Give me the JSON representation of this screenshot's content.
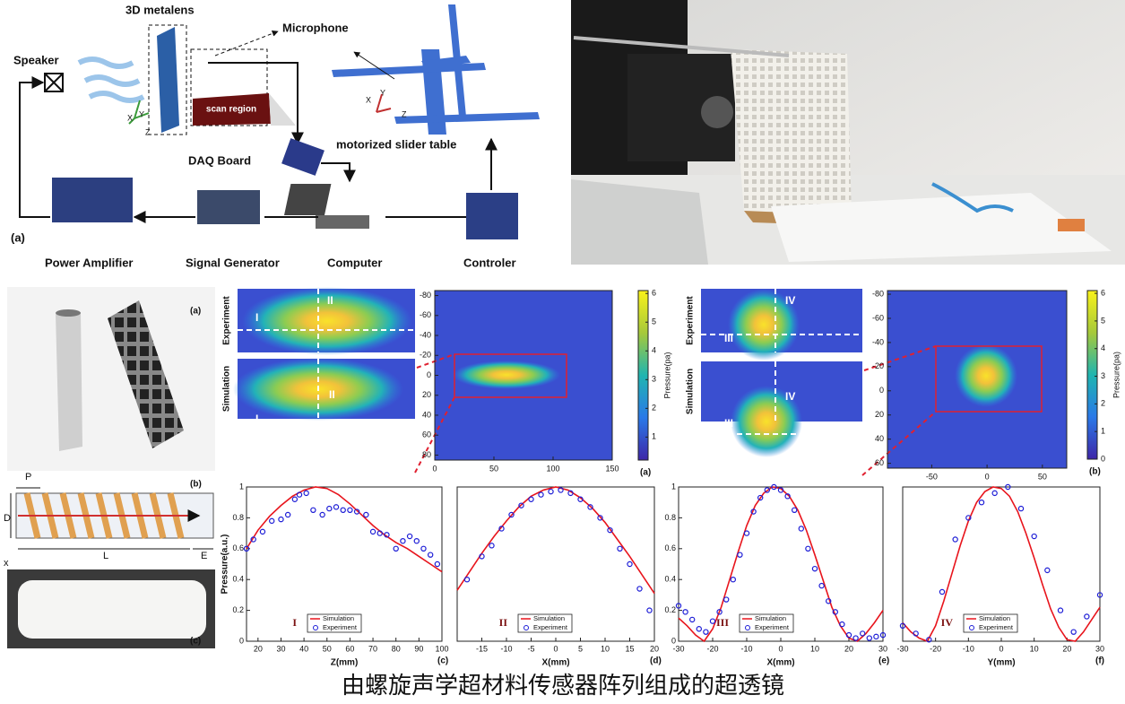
{
  "setup": {
    "panel": "(a)",
    "speaker": "Speaker",
    "metalens": "3D metalens",
    "microphone": "Microphone",
    "scan_region": "scan region",
    "daq": "DAQ Board",
    "slider": "motorized slider table",
    "power_amplifier": "Power Amplifier",
    "signal_generator": "Signal Generator",
    "computer": "Computer",
    "controller": "Controler",
    "axes": [
      "X",
      "Y",
      "Z"
    ]
  },
  "unit_cell": {
    "labels": [
      "(a)",
      "(b)",
      "(c)"
    ],
    "dims": [
      "P",
      "D",
      "L",
      "E",
      "x"
    ]
  },
  "maps": [
    {
      "rows": [
        "Experiment",
        "Simulation"
      ],
      "cuts": [
        "I",
        "II"
      ],
      "xlim": [
        0,
        150
      ],
      "ylim": [
        -85,
        85
      ],
      "xticks": [
        0,
        50,
        100,
        150
      ],
      "yticks": [
        -80,
        -60,
        -40,
        -20,
        0,
        20,
        40,
        60,
        80
      ],
      "clim": [
        0.2,
        6.1
      ],
      "colorbar_ticks": [
        1,
        2,
        3,
        4,
        5,
        6
      ],
      "colorbar_label": "Pressure(pa)",
      "panel": "(a)"
    },
    {
      "rows": [
        "Experiment",
        "Simulation"
      ],
      "cuts": [
        "III",
        "IV"
      ],
      "xlim": [
        -90,
        72
      ],
      "ylim": [
        -83,
        64
      ],
      "xticks": [
        -50,
        0,
        50
      ],
      "yticks": [
        -80,
        -60,
        -40,
        -20,
        0,
        20,
        40,
        60
      ],
      "clim": [
        0,
        6.1
      ],
      "colorbar_ticks": [
        0,
        1,
        2,
        3,
        4,
        5,
        6
      ],
      "colorbar_label": "Pressure(pa)",
      "panel": "(b)"
    }
  ],
  "chart_data": [
    {
      "type": "line",
      "xlabel": "Z(mm)",
      "ylabel": "Pressure(a.u.)",
      "annotation": "I",
      "panel": "(c)",
      "xlim": [
        15,
        100
      ],
      "ylim": [
        0,
        1
      ],
      "xticks": [
        20,
        30,
        40,
        50,
        60,
        70,
        80,
        90,
        100
      ],
      "yticks": [
        0,
        0.2,
        0.4,
        0.6,
        0.8,
        1
      ],
      "series": [
        {
          "name": "Simulation",
          "color": "#e8141c",
          "mode": "line",
          "x": [
            15,
            20,
            25,
            30,
            35,
            40,
            45,
            50,
            55,
            60,
            65,
            70,
            75,
            80,
            85,
            90,
            95,
            100
          ],
          "values": [
            0.6,
            0.72,
            0.81,
            0.88,
            0.94,
            0.98,
            1.0,
            0.99,
            0.95,
            0.89,
            0.82,
            0.75,
            0.69,
            0.64,
            0.6,
            0.55,
            0.5,
            0.45
          ]
        },
        {
          "name": "Experiment",
          "color": "#1c1cd6",
          "mode": "markers",
          "x": [
            15,
            18,
            22,
            26,
            30,
            33,
            36,
            38,
            41,
            44,
            48,
            51,
            54,
            57,
            60,
            63,
            67,
            70,
            73,
            76,
            80,
            83,
            86,
            89,
            92,
            95,
            98
          ],
          "values": [
            0.6,
            0.66,
            0.71,
            0.78,
            0.79,
            0.82,
            0.92,
            0.95,
            0.96,
            0.85,
            0.82,
            0.86,
            0.87,
            0.85,
            0.85,
            0.84,
            0.82,
            0.71,
            0.7,
            0.69,
            0.6,
            0.65,
            0.68,
            0.65,
            0.6,
            0.56,
            0.5
          ]
        }
      ]
    },
    {
      "type": "line",
      "xlabel": "X(mm)",
      "annotation": "II",
      "panel": "(d)",
      "xlim": [
        -20,
        20
      ],
      "ylim": [
        0,
        1
      ],
      "xticks": [
        -15,
        -10,
        -5,
        0,
        5,
        10,
        15,
        20
      ],
      "series": [
        {
          "name": "Simulation",
          "color": "#e8141c",
          "mode": "line",
          "x": [
            -20,
            -17.5,
            -15,
            -12.5,
            -10,
            -7.5,
            -5,
            -2.5,
            0,
            2.5,
            5,
            7.5,
            10,
            12.5,
            15,
            17.5,
            20
          ],
          "values": [
            0.33,
            0.45,
            0.57,
            0.68,
            0.78,
            0.87,
            0.94,
            0.98,
            1.0,
            0.98,
            0.93,
            0.86,
            0.77,
            0.66,
            0.55,
            0.43,
            0.31
          ]
        },
        {
          "name": "Experiment",
          "color": "#1c1cd6",
          "mode": "markers",
          "x": [
            -18,
            -15,
            -13,
            -11,
            -9,
            -7,
            -5,
            -3,
            -1,
            1,
            3,
            5,
            7,
            9,
            11,
            13,
            15,
            17,
            19
          ],
          "values": [
            0.4,
            0.55,
            0.62,
            0.73,
            0.82,
            0.88,
            0.92,
            0.95,
            0.97,
            0.98,
            0.96,
            0.92,
            0.87,
            0.8,
            0.72,
            0.6,
            0.5,
            0.34,
            0.2
          ]
        }
      ]
    },
    {
      "type": "line",
      "xlabel": "X(mm)",
      "annotation": "III",
      "panel": "(e)",
      "xlim": [
        -30,
        30
      ],
      "ylim": [
        0,
        1
      ],
      "xticks": [
        -30,
        -20,
        -10,
        0,
        10,
        20,
        30
      ],
      "yticks": [
        0,
        0.2,
        0.4,
        0.6,
        0.8,
        1
      ],
      "series": [
        {
          "name": "Simulation",
          "color": "#e8141c",
          "mode": "line",
          "x": [
            -30,
            -27.5,
            -25,
            -22.5,
            -20,
            -17.5,
            -15,
            -12.5,
            -10,
            -7.5,
            -5,
            -2.5,
            0,
            2.5,
            5,
            7.5,
            10,
            12.5,
            15,
            17.5,
            20,
            22.5,
            25,
            27.5,
            30
          ],
          "values": [
            0.15,
            0.1,
            0.04,
            0,
            0.08,
            0.22,
            0.4,
            0.58,
            0.75,
            0.88,
            0.96,
            1.0,
            0.99,
            0.94,
            0.85,
            0.72,
            0.56,
            0.39,
            0.22,
            0.1,
            0.02,
            0,
            0.05,
            0.12,
            0.2
          ]
        },
        {
          "name": "Experiment",
          "color": "#1c1cd6",
          "mode": "markers",
          "x": [
            -30,
            -28,
            -26,
            -24,
            -22,
            -20,
            -18,
            -16,
            -14,
            -12,
            -10,
            -8,
            -6,
            -4,
            -2,
            0,
            2,
            4,
            6,
            8,
            10,
            12,
            14,
            16,
            18,
            20,
            22,
            24,
            26,
            28,
            30
          ],
          "values": [
            0.23,
            0.19,
            0.14,
            0.08,
            0.06,
            0.13,
            0.19,
            0.27,
            0.4,
            0.56,
            0.7,
            0.84,
            0.93,
            0.98,
            1.0,
            0.98,
            0.94,
            0.85,
            0.73,
            0.6,
            0.47,
            0.36,
            0.26,
            0.19,
            0.11,
            0.04,
            0.02,
            0.05,
            0.02,
            0.03,
            0.04
          ]
        }
      ]
    },
    {
      "type": "line",
      "xlabel": "Y(mm)",
      "annotation": "IV",
      "panel": "(f)",
      "xlim": [
        -30,
        30
      ],
      "ylim": [
        0,
        1
      ],
      "xticks": [
        -30,
        -20,
        -10,
        0,
        10,
        20,
        30
      ],
      "series": [
        {
          "name": "Simulation",
          "color": "#e8141c",
          "mode": "line",
          "x": [
            -30,
            -27.5,
            -25,
            -22.5,
            -20,
            -17.5,
            -15,
            -12.5,
            -10,
            -7.5,
            -5,
            -2.5,
            0,
            2.5,
            5,
            7.5,
            10,
            12.5,
            15,
            17.5,
            20,
            22.5,
            25,
            27.5,
            30
          ],
          "values": [
            0.12,
            0.06,
            0.02,
            0,
            0.1,
            0.26,
            0.44,
            0.62,
            0.78,
            0.9,
            0.97,
            1.0,
            0.99,
            0.94,
            0.84,
            0.7,
            0.54,
            0.37,
            0.21,
            0.09,
            0.01,
            0,
            0.06,
            0.14,
            0.22
          ]
        },
        {
          "name": "Experiment",
          "color": "#1c1cd6",
          "mode": "markers",
          "x": [
            -30,
            -26,
            -22,
            -18,
            -14,
            -10,
            -6,
            -2,
            2,
            6,
            10,
            14,
            18,
            22,
            26,
            30
          ],
          "values": [
            0.1,
            0.05,
            0.01,
            0.32,
            0.66,
            0.8,
            0.9,
            0.96,
            1.0,
            0.86,
            0.68,
            0.46,
            0.2,
            0.06,
            0.16,
            0.3
          ]
        }
      ]
    }
  ],
  "caption": "由螺旋声学超材料传感器阵列组成的超透镜"
}
